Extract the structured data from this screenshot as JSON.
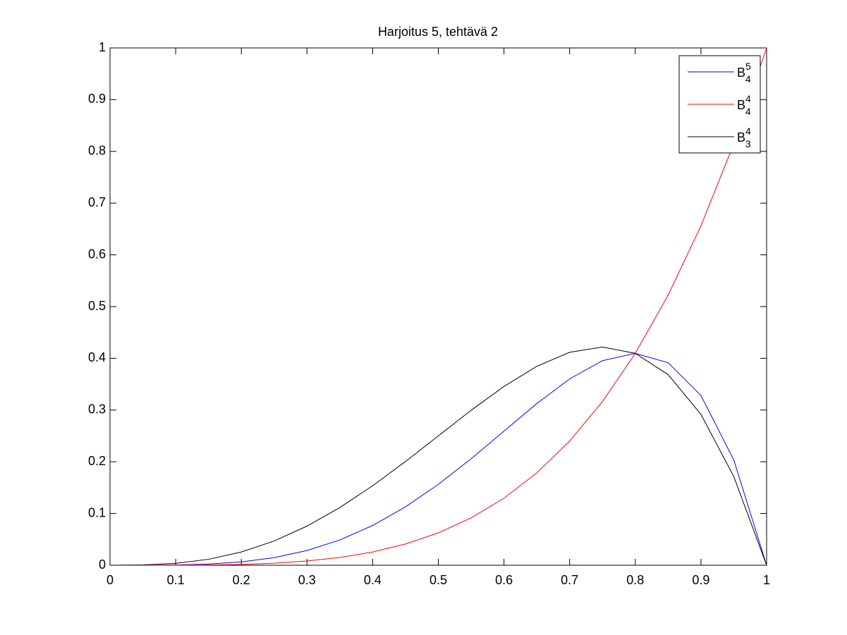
{
  "chart_data": {
    "type": "line",
    "title": "Harjoitus 5, tehtävä 2",
    "x": [
      0,
      0.05,
      0.1,
      0.15,
      0.2,
      0.25,
      0.3,
      0.35,
      0.4,
      0.45,
      0.5,
      0.55,
      0.6,
      0.65,
      0.7,
      0.75,
      0.8,
      0.85,
      0.9,
      0.95,
      1
    ],
    "series": [
      {
        "name": "B",
        "subscript": "4",
        "superscript": "5",
        "color": "#0000ff",
        "values": [
          0,
          0,
          0.0005,
          0.0022,
          0.0064,
          0.0146,
          0.0284,
          0.0488,
          0.0768,
          0.1128,
          0.1563,
          0.2059,
          0.2592,
          0.3124,
          0.3602,
          0.3955,
          0.4096,
          0.3915,
          0.3281,
          0.2036,
          0
        ]
      },
      {
        "name": "B",
        "subscript": "4",
        "superscript": "4",
        "color": "#ff0000",
        "values": [
          0,
          0,
          0.0001,
          0.0005,
          0.0016,
          0.0039,
          0.0081,
          0.015,
          0.0256,
          0.041,
          0.0625,
          0.0915,
          0.1296,
          0.1785,
          0.2401,
          0.3164,
          0.4096,
          0.522,
          0.6561,
          0.8145,
          1
        ]
      },
      {
        "name": "B",
        "subscript": "3",
        "superscript": "4",
        "color": "#000000",
        "values": [
          0,
          0.0005,
          0.0036,
          0.0115,
          0.0256,
          0.0469,
          0.0756,
          0.1115,
          0.1536,
          0.2005,
          0.25,
          0.2995,
          0.3456,
          0.3845,
          0.4116,
          0.4219,
          0.4096,
          0.3685,
          0.2916,
          0.1715,
          0
        ]
      }
    ],
    "xlim": [
      0,
      1
    ],
    "xticks": [
      0,
      0.1,
      0.2,
      0.3,
      0.4,
      0.5,
      0.6,
      0.7,
      0.8,
      0.9,
      1
    ],
    "ylim": [
      0,
      1
    ],
    "yticks": [
      0,
      0.1,
      0.2,
      0.3,
      0.4,
      0.5,
      0.6,
      0.7,
      0.8,
      0.9,
      1
    ],
    "grid": false,
    "legend": "northeast"
  }
}
